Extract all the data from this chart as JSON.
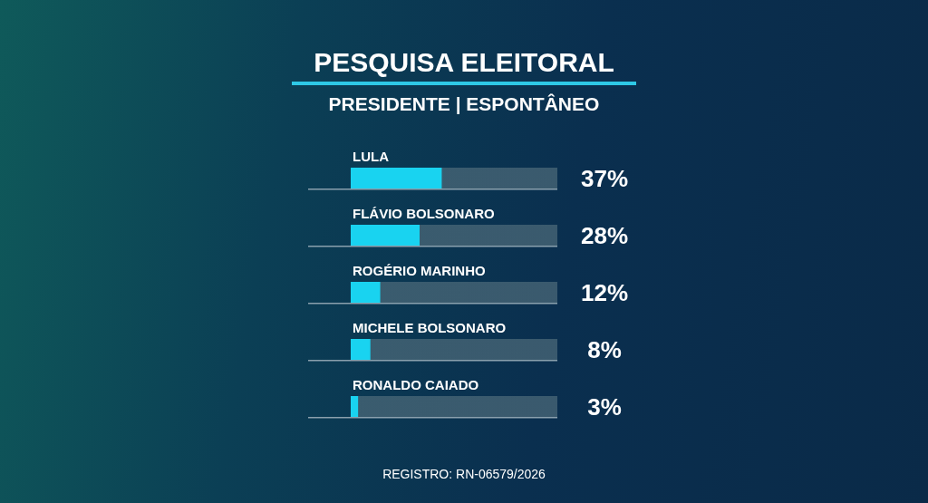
{
  "chart_data": {
    "type": "bar",
    "orientation": "horizontal",
    "title": "PESQUISA ELEITORAL",
    "subtitle": "PRESIDENTE | ESPONTÂNEO",
    "categories": [
      "LULA",
      "FLÁVIO BOLSONARO",
      "ROGÉRIO MARINHO",
      "MICHELE BOLSONARO",
      "RONALDO CAIADO"
    ],
    "values": [
      37,
      28,
      12,
      8,
      3
    ],
    "color": "#19d3f0",
    "value_labels": [
      "37%",
      "28%",
      "12%",
      "8%",
      "3%"
    ],
    "annotations": [
      "REGISTRO: RN-06579/2026"
    ],
    "grid": false,
    "legend": false
  }
}
